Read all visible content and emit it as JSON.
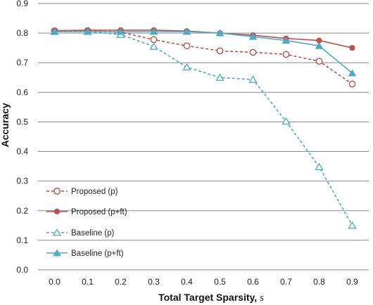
{
  "chart_data": {
    "type": "line",
    "xlabel": "Total Target Sparsity, s",
    "xlabel_main": "Total Target Sparsity, ",
    "xlabel_var": "s",
    "ylabel": "Accuracy",
    "x": [
      0.0,
      0.1,
      0.2,
      0.3,
      0.4,
      0.5,
      0.6,
      0.7,
      0.8,
      0.9
    ],
    "x_tick_labels": [
      "0.0",
      "0.1",
      "0.2",
      "0.3",
      "0.4",
      "0.5",
      "0.6",
      "0.7",
      "0.8",
      "0.9"
    ],
    "ylim": [
      0,
      0.9
    ],
    "y_ticks": [
      0,
      0.1,
      0.2,
      0.3,
      0.4,
      0.5,
      0.6,
      0.7,
      0.8,
      0.9
    ],
    "y_tick_labels": [
      "0.0",
      "0.1",
      "0.2",
      "0.3",
      "0.4",
      "0.5",
      "0.6",
      "0.7",
      "0.8",
      "0.9"
    ],
    "grid": "horizontal",
    "legend_position": "bottom-left",
    "series": [
      {
        "name": "Proposed (p)",
        "color": "#c0504d",
        "dash": true,
        "marker": "circle-open",
        "values": [
          0.808,
          0.808,
          0.803,
          0.778,
          0.757,
          0.74,
          0.735,
          0.728,
          0.705,
          0.628
        ]
      },
      {
        "name": "Proposed (p+ft)",
        "color": "#c0504d",
        "dash": false,
        "marker": "circle-filled",
        "values": [
          0.808,
          0.81,
          0.81,
          0.81,
          0.807,
          0.8,
          0.793,
          0.782,
          0.775,
          0.75
        ]
      },
      {
        "name": "Baseline (p)",
        "color": "#4bacc6",
        "dash": true,
        "marker": "triangle-open",
        "values": [
          0.805,
          0.805,
          0.795,
          0.755,
          0.685,
          0.65,
          0.643,
          0.502,
          0.348,
          0.15
        ]
      },
      {
        "name": "Baseline (p+ft)",
        "color": "#4bacc6",
        "dash": false,
        "marker": "triangle-filled",
        "values": [
          0.805,
          0.805,
          0.805,
          0.805,
          0.805,
          0.8,
          0.788,
          0.775,
          0.757,
          0.665
        ]
      }
    ]
  }
}
